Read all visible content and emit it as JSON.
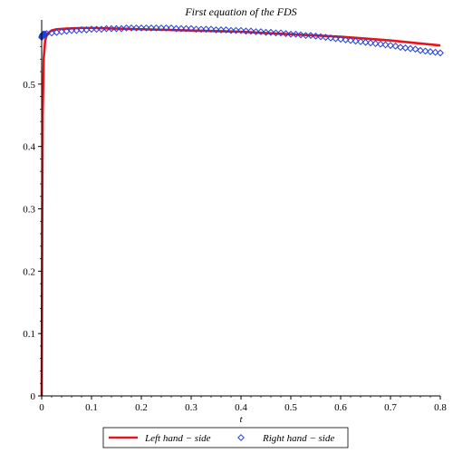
{
  "chart_data": {
    "type": "line",
    "title": "First equation of the FDS",
    "xlabel": "t",
    "ylabel": "",
    "xlim": [
      0,
      0.8
    ],
    "ylim": [
      0,
      0.6
    ],
    "x_ticks": [
      0,
      0.1,
      0.2,
      0.3,
      0.4,
      0.5,
      0.6,
      0.7,
      0.8
    ],
    "x_tick_labels": [
      "0",
      "0.1",
      "0.2",
      "0.3",
      "0.4",
      "0.5",
      "0.6",
      "0.7",
      "0.8"
    ],
    "y_ticks": [
      0,
      0.1,
      0.2,
      0.3,
      0.4,
      0.5
    ],
    "y_tick_labels": [
      "0",
      "0.1",
      "0.2",
      "0.3",
      "0.4",
      "0.5"
    ],
    "grid": false,
    "legend_position": "bottom",
    "series": [
      {
        "name": "Left hand − side",
        "style": "line",
        "color": "#e8141c",
        "x": [
          0,
          0.001,
          0.002,
          0.004,
          0.007,
          0.01,
          0.015,
          0.02,
          0.03,
          0.05,
          0.08,
          0.1,
          0.15,
          0.2,
          0.25,
          0.3,
          0.35,
          0.4,
          0.45,
          0.5,
          0.55,
          0.6,
          0.65,
          0.7,
          0.75,
          0.8
        ],
        "y": [
          0,
          0.25,
          0.45,
          0.54,
          0.57,
          0.578,
          0.583,
          0.586,
          0.588,
          0.589,
          0.59,
          0.59,
          0.589,
          0.588,
          0.587,
          0.586,
          0.585,
          0.584,
          0.582,
          0.58,
          0.578,
          0.576,
          0.573,
          0.57,
          0.566,
          0.562
        ]
      },
      {
        "name": "Right hand − side",
        "style": "markers",
        "marker": "diamond",
        "color": "#1f3fd6",
        "x": [
          0,
          0.0005,
          0.001,
          0.0015,
          0.002,
          0.003,
          0.004,
          0.005,
          0.007,
          0.01,
          0.02,
          0.03,
          0.04,
          0.05,
          0.06,
          0.07,
          0.08,
          0.09,
          0.1,
          0.11,
          0.12,
          0.13,
          0.14,
          0.15,
          0.16,
          0.17,
          0.18,
          0.19,
          0.2,
          0.21,
          0.22,
          0.23,
          0.24,
          0.25,
          0.26,
          0.27,
          0.28,
          0.29,
          0.3,
          0.31,
          0.32,
          0.33,
          0.34,
          0.35,
          0.36,
          0.37,
          0.38,
          0.39,
          0.4,
          0.41,
          0.42,
          0.43,
          0.44,
          0.45,
          0.46,
          0.47,
          0.48,
          0.49,
          0.5,
          0.51,
          0.52,
          0.53,
          0.54,
          0.55,
          0.56,
          0.57,
          0.58,
          0.59,
          0.6,
          0.61,
          0.62,
          0.63,
          0.64,
          0.65,
          0.66,
          0.67,
          0.68,
          0.69,
          0.7,
          0.71,
          0.72,
          0.73,
          0.74,
          0.75,
          0.76,
          0.77,
          0.78,
          0.79,
          0.8
        ],
        "y": [
          0.575,
          0.576,
          0.577,
          0.578,
          0.579,
          0.58,
          0.58,
          0.58,
          0.58,
          0.581,
          0.582,
          0.583,
          0.584,
          0.585,
          0.586,
          0.586,
          0.587,
          0.587,
          0.588,
          0.588,
          0.588,
          0.589,
          0.589,
          0.589,
          0.589,
          0.59,
          0.59,
          0.59,
          0.59,
          0.59,
          0.59,
          0.59,
          0.59,
          0.59,
          0.59,
          0.589,
          0.589,
          0.589,
          0.589,
          0.588,
          0.588,
          0.588,
          0.588,
          0.587,
          0.587,
          0.587,
          0.586,
          0.586,
          0.586,
          0.585,
          0.585,
          0.584,
          0.584,
          0.583,
          0.583,
          0.582,
          0.582,
          0.581,
          0.58,
          0.58,
          0.579,
          0.578,
          0.578,
          0.577,
          0.576,
          0.575,
          0.574,
          0.573,
          0.572,
          0.571,
          0.57,
          0.569,
          0.568,
          0.567,
          0.566,
          0.565,
          0.564,
          0.563,
          0.562,
          0.561,
          0.559,
          0.558,
          0.557,
          0.556,
          0.554,
          0.553,
          0.552,
          0.551,
          0.55
        ]
      }
    ]
  }
}
